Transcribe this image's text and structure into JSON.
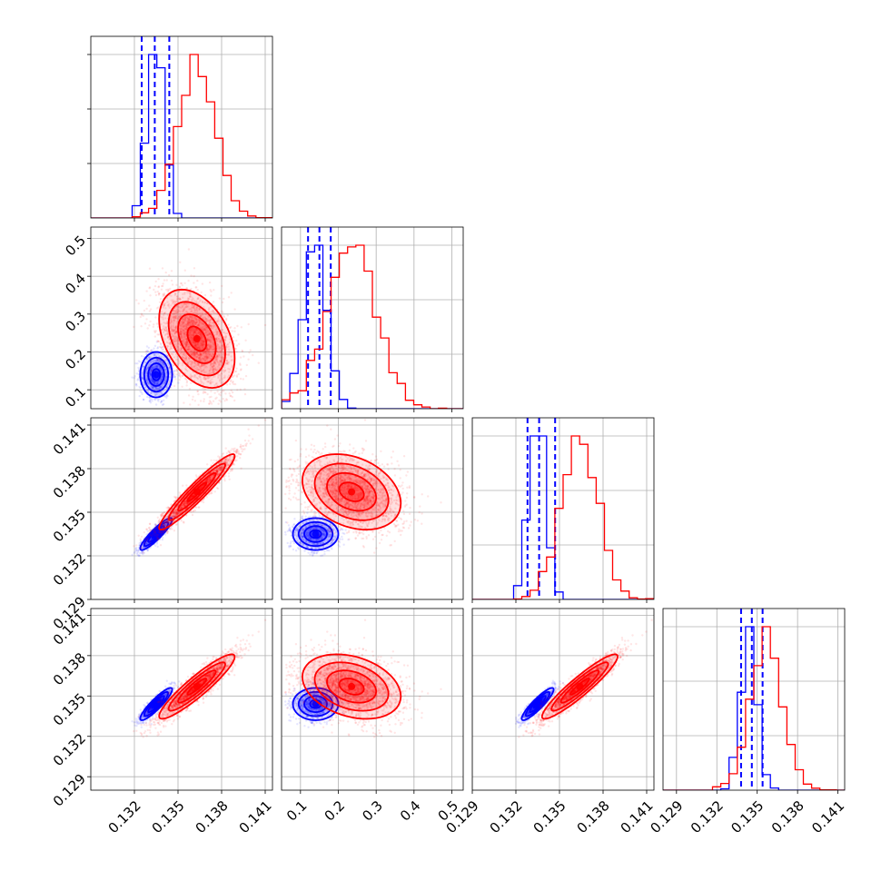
{
  "colors": {
    "series_a": "#0000ff",
    "series_b": "#ff0000",
    "grid": "#b0b0b0",
    "frame": "#000000"
  },
  "chart_data": {
    "type": "corner",
    "grid": true,
    "params": [
      {
        "range": [
          0.129,
          0.1415
        ],
        "ticks": [
          0.132,
          0.135,
          0.138,
          0.141
        ],
        "tick_labels": [
          "0.132",
          "0.135",
          "0.138",
          "0.141"
        ]
      },
      {
        "range": [
          0.05,
          0.53
        ],
        "ticks": [
          0.1,
          0.2,
          0.3,
          0.4,
          0.5
        ],
        "tick_labels": [
          "0.1",
          "0.2",
          "0.3",
          "0.4",
          "0.5"
        ]
      },
      {
        "range": [
          0.129,
          0.1415
        ],
        "ticks": [
          0.129,
          0.132,
          0.135,
          0.138,
          0.141
        ],
        "tick_labels": [
          "0.129",
          "0.132",
          "0.135",
          "0.138",
          "0.141"
        ]
      },
      {
        "range": [
          0.128,
          0.1415
        ],
        "ticks": [
          0.129,
          0.132,
          0.135,
          0.138,
          0.141
        ],
        "tick_labels": [
          "0.129",
          "0.132",
          "0.135",
          "0.138",
          "0.141"
        ]
      }
    ],
    "series": [
      {
        "color": "#0000ff",
        "mean": [
          0.1335,
          0.14,
          0.1335,
          0.1344
        ],
        "std": [
          0.00055,
          0.03,
          0.00055,
          0.0006
        ],
        "quantiles": [
          [
            0.1325,
            0.1334,
            0.1344
          ],
          [
            0.12,
            0.15,
            0.18
          ],
          [
            0.1328,
            0.1336,
            0.1347
          ],
          [
            0.1338,
            0.1346,
            0.1354
          ]
        ],
        "corr": [
          [
            1,
            0,
            0.9,
            0.9
          ],
          [
            0,
            1,
            0,
            0
          ],
          [
            0.9,
            0,
            1,
            0.9
          ],
          [
            0.9,
            0,
            0.9,
            1
          ]
        ]
      },
      {
        "color": "#ff0000",
        "mean": [
          0.1363,
          0.235,
          0.1364,
          0.1357
        ],
        "std": [
          0.0013,
          0.065,
          0.0013,
          0.0012
        ],
        "corr": [
          [
            1,
            -0.4,
            0.95,
            0.92
          ],
          [
            -0.4,
            1,
            -0.3,
            -0.3
          ],
          [
            0.95,
            -0.3,
            1,
            0.93
          ],
          [
            0.92,
            -0.3,
            0.93,
            1
          ]
        ]
      }
    ]
  }
}
